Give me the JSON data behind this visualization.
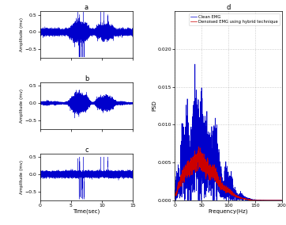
{
  "fig_width": 3.62,
  "fig_height": 2.84,
  "dpi": 100,
  "left_panels": [
    {
      "label": "a",
      "ylabel": "Amplitude (mv)",
      "ylim": [
        -0.75,
        0.6
      ],
      "yticks": [
        -0.5,
        0,
        0.5
      ],
      "color": "#0000cc"
    },
    {
      "label": "b",
      "ylabel": "Amplitude (mv)",
      "ylim": [
        -0.75,
        0.6
      ],
      "yticks": [
        -0.5,
        0,
        0.5
      ],
      "color": "#0000cc"
    },
    {
      "label": "c",
      "ylabel": "Amplitude (mv)",
      "ylim": [
        -0.75,
        0.6
      ],
      "yticks": [
        -0.5,
        0,
        0.5
      ],
      "color": "#0000cc"
    }
  ],
  "time_xlim": [
    0,
    15
  ],
  "time_xticks": [
    0,
    5,
    10,
    15
  ],
  "time_xlabel": "Time(sec)",
  "right_panel": {
    "label": "d",
    "xlabel": "Frequency(Hz)",
    "ylabel": "PSD",
    "xlim": [
      0,
      200
    ],
    "ylim": [
      0,
      0.025
    ],
    "yticks": [
      0,
      0.005,
      0.01,
      0.015,
      0.02
    ],
    "xticks": [
      0,
      50,
      100,
      150,
      200
    ],
    "clean_color": "#0000cc",
    "denoised_color": "#cc0000",
    "clean_label": "Clean EMG",
    "denoised_label": "Denoised EMG using hybrid technique"
  },
  "bg_color": "#ffffff"
}
